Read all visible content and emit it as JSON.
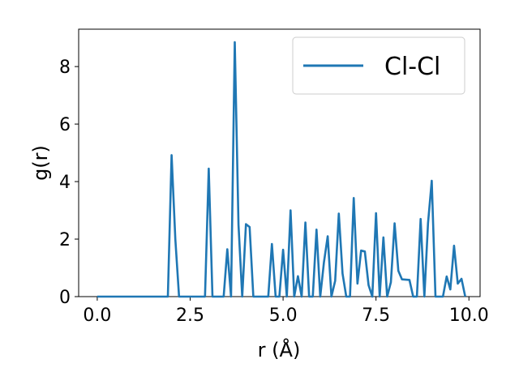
{
  "chart_data": {
    "type": "line",
    "title": "",
    "xlabel": "r (Å)",
    "ylabel": "g(r)",
    "xlim": [
      -0.5,
      10.3
    ],
    "ylim": [
      0,
      9.3
    ],
    "xticks": [
      0.0,
      2.5,
      5.0,
      7.5,
      10.0
    ],
    "xtick_labels": [
      "0.0",
      "2.5",
      "5.0",
      "7.5",
      "10.0"
    ],
    "yticks": [
      0,
      2,
      4,
      6,
      8
    ],
    "ytick_labels": [
      "0",
      "2",
      "4",
      "6",
      "8"
    ],
    "grid": false,
    "legend": {
      "placement": "top-right",
      "entries": [
        "Cl-Cl"
      ]
    },
    "colors": {
      "series": "#1f77b4"
    },
    "series": [
      {
        "name": "Cl-Cl",
        "x": [
          0.0,
          1.9,
          2.0,
          2.1,
          2.2,
          2.9,
          3.0,
          3.1,
          3.2,
          3.4,
          3.5,
          3.6,
          3.7,
          3.8,
          3.9,
          4.0,
          4.1,
          4.2,
          4.3,
          4.6,
          4.7,
          4.8,
          4.9,
          5.0,
          5.1,
          5.2,
          5.3,
          5.4,
          5.5,
          5.6,
          5.7,
          5.8,
          5.9,
          6.0,
          6.1,
          6.2,
          6.3,
          6.4,
          6.5,
          6.6,
          6.7,
          6.8,
          6.9,
          7.0,
          7.1,
          7.2,
          7.3,
          7.4,
          7.5,
          7.6,
          7.7,
          7.8,
          7.9,
          8.0,
          8.1,
          8.2,
          8.4,
          8.5,
          8.6,
          8.7,
          8.8,
          8.9,
          9.0,
          9.1,
          9.2,
          9.3,
          9.4,
          9.5,
          9.6,
          9.7,
          9.8,
          9.9
        ],
        "y": [
          0.0,
          0.0,
          4.92,
          2.0,
          0.0,
          0.0,
          4.45,
          0.0,
          0.0,
          0.0,
          1.65,
          0.0,
          8.85,
          2.5,
          0.0,
          2.52,
          2.42,
          0.0,
          0.0,
          0.0,
          1.83,
          0.0,
          0.0,
          1.63,
          0.0,
          3.0,
          0.0,
          0.71,
          0.0,
          2.58,
          0.0,
          0.0,
          2.33,
          0.0,
          1.2,
          2.1,
          0.0,
          0.55,
          2.89,
          0.8,
          0.0,
          0.0,
          3.43,
          0.45,
          1.6,
          1.57,
          0.4,
          0.0,
          2.9,
          0.0,
          2.06,
          0.0,
          0.5,
          2.55,
          0.9,
          0.6,
          0.58,
          0.0,
          0.0,
          2.7,
          0.0,
          2.55,
          4.03,
          0.0,
          0.0,
          0.0,
          0.7,
          0.25,
          1.77,
          0.45,
          0.62,
          0.0
        ]
      }
    ]
  }
}
